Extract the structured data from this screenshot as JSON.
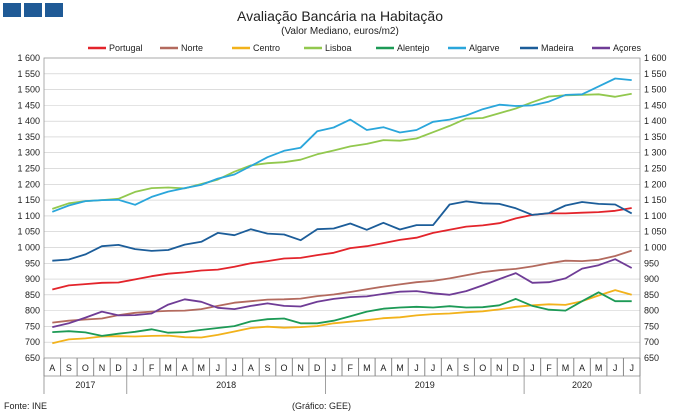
{
  "header": {
    "title": "Avaliação Bancária na Habitação",
    "subtitle": "(Valor Mediano, euros/m2)"
  },
  "footer": {
    "source": "Fonte: INE",
    "credit": "(Gráfico: GEE)"
  },
  "colors": {
    "logo": "#1f5a96",
    "grid": "#c9c9c9"
  },
  "chart_data": {
    "type": "line",
    "title": "Avaliação Bancária na Habitação",
    "subtitle": "(Valor Mediano, euros/m2)",
    "ylim": [
      650,
      1600
    ],
    "yticks": [
      "650",
      "700",
      "750",
      "800",
      "850",
      "900",
      "950",
      "1 000",
      "1 050",
      "1 100",
      "1 150",
      "1 200",
      "1 250",
      "1 300",
      "1 350",
      "1 400",
      "1 450",
      "1 500",
      "1 550",
      "1 600"
    ],
    "ytick_values": [
      650,
      700,
      750,
      800,
      850,
      900,
      950,
      1000,
      1050,
      1100,
      1150,
      1200,
      1250,
      1300,
      1350,
      1400,
      1450,
      1500,
      1550,
      1600
    ],
    "months": [
      "A",
      "S",
      "O",
      "N",
      "D",
      "J",
      "F",
      "M",
      "A",
      "M",
      "J",
      "J",
      "A",
      "S",
      "O",
      "N",
      "D",
      "J",
      "F",
      "M",
      "A",
      "M",
      "J",
      "J",
      "A",
      "S",
      "O",
      "N",
      "D",
      "J",
      "F",
      "M",
      "A",
      "M",
      "J",
      "J"
    ],
    "years": [
      {
        "label": "2017",
        "start": 0,
        "end": 4
      },
      {
        "label": "2018",
        "start": 5,
        "end": 16
      },
      {
        "label": "2019",
        "start": 17,
        "end": 28
      },
      {
        "label": "2020",
        "start": 29,
        "end": 35
      }
    ],
    "grid": true,
    "legend_position": "top",
    "series": [
      {
        "name": "Portugal",
        "color": "#e3242b",
        "values": [
          867,
          880,
          884,
          888,
          889,
          899,
          909,
          917,
          921,
          927,
          930,
          939,
          950,
          957,
          965,
          967,
          976,
          983,
          998,
          1004,
          1014,
          1024,
          1031,
          1046,
          1056,
          1066,
          1070,
          1077,
          1092,
          1103,
          1108,
          1108,
          1110,
          1112,
          1116,
          1125
        ]
      },
      {
        "name": "Norte",
        "color": "#b36a5e",
        "values": [
          762,
          768,
          772,
          775,
          786,
          793,
          797,
          799,
          800,
          805,
          815,
          825,
          830,
          835,
          836,
          838,
          846,
          851,
          859,
          868,
          876,
          883,
          890,
          894,
          902,
          912,
          922,
          928,
          932,
          940,
          950,
          958,
          957,
          961,
          973,
          990
        ]
      },
      {
        "name": "Centro",
        "color": "#f2b21b",
        "values": [
          697,
          709,
          712,
          718,
          719,
          718,
          720,
          721,
          716,
          715,
          723,
          734,
          745,
          749,
          746,
          748,
          751,
          760,
          765,
          770,
          776,
          779,
          785,
          789,
          791,
          795,
          798,
          804,
          812,
          817,
          820,
          818,
          830,
          848,
          865,
          850
        ]
      },
      {
        "name": "Lisboa",
        "color": "#92c84e",
        "values": [
          1122,
          1140,
          1147,
          1150,
          1154,
          1176,
          1188,
          1190,
          1187,
          1201,
          1215,
          1240,
          1260,
          1267,
          1270,
          1278,
          1295,
          1307,
          1320,
          1328,
          1340,
          1338,
          1345,
          1365,
          1385,
          1408,
          1410,
          1425,
          1440,
          1460,
          1478,
          1482,
          1483,
          1485,
          1477,
          1487
        ]
      },
      {
        "name": "Alentejo",
        "color": "#1d9a56",
        "values": [
          732,
          735,
          731,
          720,
          727,
          733,
          741,
          730,
          732,
          739,
          745,
          751,
          766,
          773,
          775,
          760,
          760,
          768,
          782,
          797,
          806,
          810,
          812,
          810,
          814,
          810,
          811,
          817,
          837,
          815,
          803,
          800,
          830,
          858,
          830,
          830
        ]
      },
      {
        "name": "Algarve",
        "color": "#2aa6db",
        "values": [
          1113,
          1133,
          1147,
          1150,
          1151,
          1135,
          1160,
          1177,
          1188,
          1198,
          1218,
          1231,
          1258,
          1286,
          1306,
          1316,
          1368,
          1380,
          1405,
          1372,
          1381,
          1364,
          1372,
          1398,
          1405,
          1418,
          1438,
          1452,
          1448,
          1450,
          1462,
          1483,
          1485,
          1510,
          1535,
          1530
        ]
      },
      {
        "name": "Madeira",
        "color": "#1c5d99",
        "values": [
          958,
          962,
          978,
          1004,
          1008,
          995,
          989,
          992,
          1009,
          1018,
          1046,
          1039,
          1058,
          1044,
          1041,
          1023,
          1058,
          1060,
          1076,
          1056,
          1078,
          1057,
          1071,
          1071,
          1136,
          1146,
          1140,
          1138,
          1124,
          1103,
          1109,
          1133,
          1144,
          1138,
          1136,
          1108
        ]
      },
      {
        "name": "Açores",
        "color": "#6f3c96",
        "values": [
          748,
          760,
          778,
          797,
          785,
          786,
          791,
          819,
          836,
          828,
          809,
          805,
          815,
          823,
          815,
          813,
          828,
          837,
          843,
          845,
          853,
          860,
          862,
          855,
          850,
          862,
          880,
          900,
          919,
          888,
          890,
          902,
          933,
          944,
          963,
          935
        ]
      }
    ]
  }
}
